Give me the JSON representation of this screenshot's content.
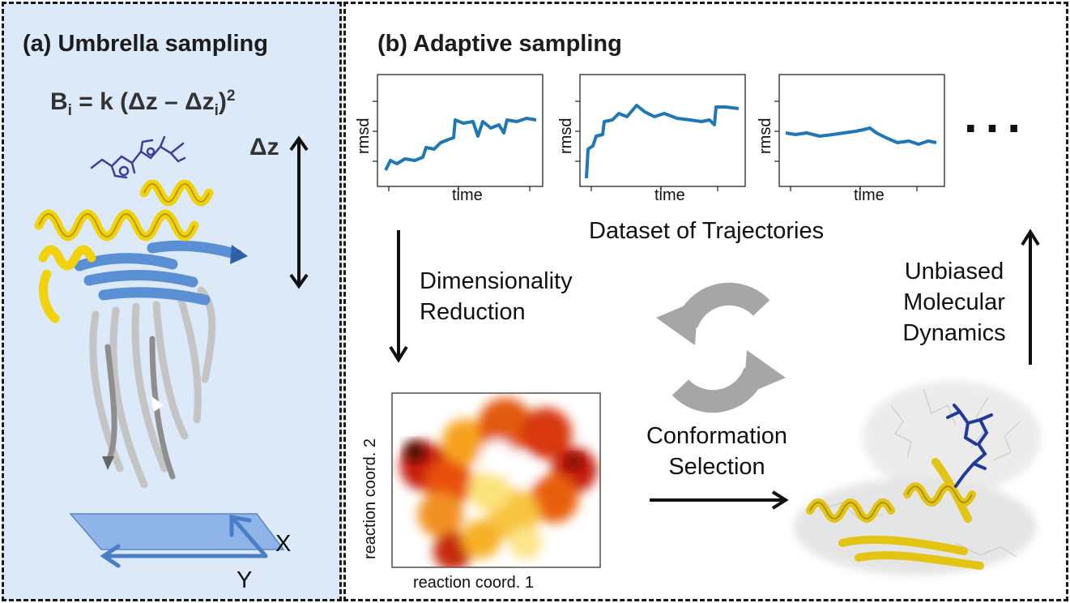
{
  "panel_a": {
    "title": "(a) Umbrella sampling",
    "formula": {
      "lhs": "B",
      "lhs_sub": "i",
      "rhs_pre": " = k (Δz – Δz",
      "rhs_sub": "i",
      "rhs_post": ")",
      "exp": "2"
    },
    "delta_label": "Δz",
    "x_label": "X",
    "y_label": "Y"
  },
  "panel_b": {
    "title": "(b) Adaptive sampling",
    "plots": [
      {
        "ylabel": "rmsd",
        "xlabel": "time"
      },
      {
        "ylabel": "rmsd",
        "xlabel": "time"
      },
      {
        "ylabel": "rmsd",
        "xlabel": "time"
      }
    ],
    "ellipsis": "...",
    "dataset_label": "Dataset of Trajectories",
    "dim_reduction": [
      "Dimensionality",
      "Reduction"
    ],
    "unbiased_md": [
      "Unbiased",
      "Molecular",
      "Dynamics"
    ],
    "conformation": [
      "Conformation",
      "Selection"
    ],
    "heatmap": {
      "xlabel": "reaction coord. 1",
      "ylabel": "reaction coord. 2"
    }
  },
  "colors": {
    "panel_a_bg": "#dce9f8",
    "trace": "#1f77b4",
    "helix_yellow": "#f2d20a",
    "sheet_blue": "#5b8fd4",
    "recycle_gray": "#a6a6a6",
    "ligand_blue": "#1f3a9a"
  }
}
